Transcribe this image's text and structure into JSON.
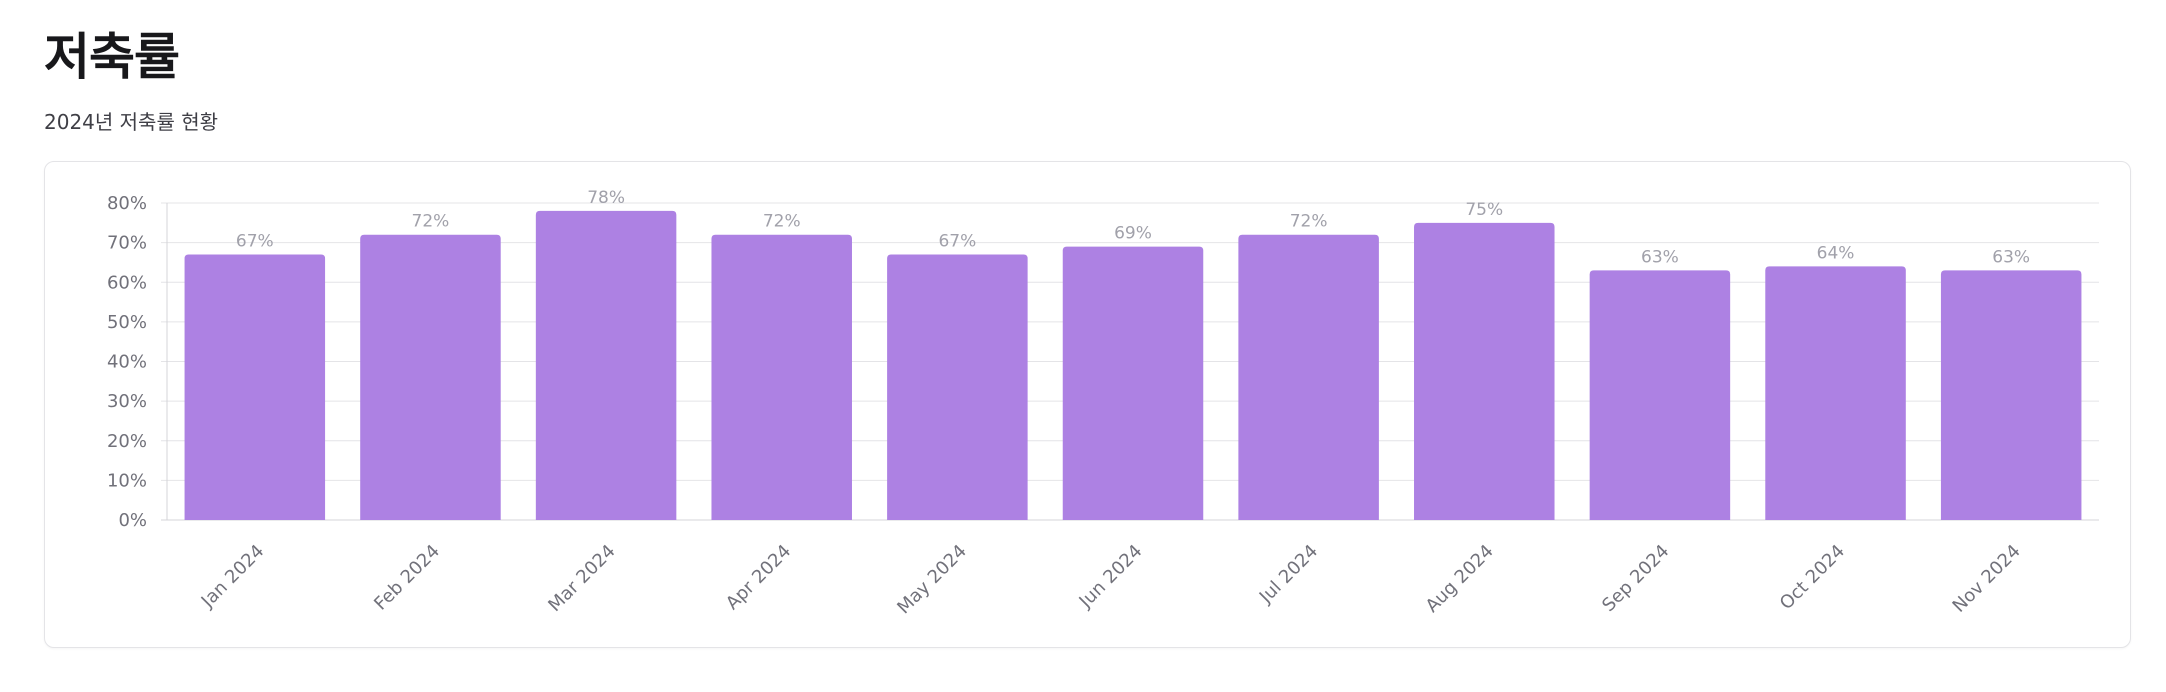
{
  "header": {
    "title": "저축률",
    "subtitle": "2024년 저축률 현황"
  },
  "chart_data": {
    "type": "bar",
    "title": "",
    "xlabel": "",
    "ylabel": "",
    "categories": [
      "Jan 2024",
      "Feb 2024",
      "Mar 2024",
      "Apr 2024",
      "May 2024",
      "Jun 2024",
      "Jul 2024",
      "Aug 2024",
      "Sep 2024",
      "Oct 2024",
      "Nov 2024"
    ],
    "series": [
      {
        "values": [
          67,
          72,
          78,
          72,
          67,
          69,
          72,
          75,
          63,
          64,
          63
        ],
        "data_labels": [
          "67%",
          "72%",
          "78%",
          "72%",
          "67%",
          "69%",
          "72%",
          "75%",
          "63%",
          "64%",
          "63%"
        ],
        "color": "#ad81e3"
      }
    ],
    "ylim": [
      0,
      80
    ],
    "y_ticks": [
      0,
      10,
      20,
      30,
      40,
      50,
      60,
      70,
      80
    ],
    "y_tick_labels": [
      "0%",
      "10%",
      "20%",
      "30%",
      "40%",
      "50%",
      "60%",
      "70%",
      "80%"
    ],
    "grid": true,
    "legend": "none",
    "colors": {
      "bar": "#ad81e3",
      "grid": "#e4e4e7",
      "axis": "#d4d4d8"
    }
  }
}
